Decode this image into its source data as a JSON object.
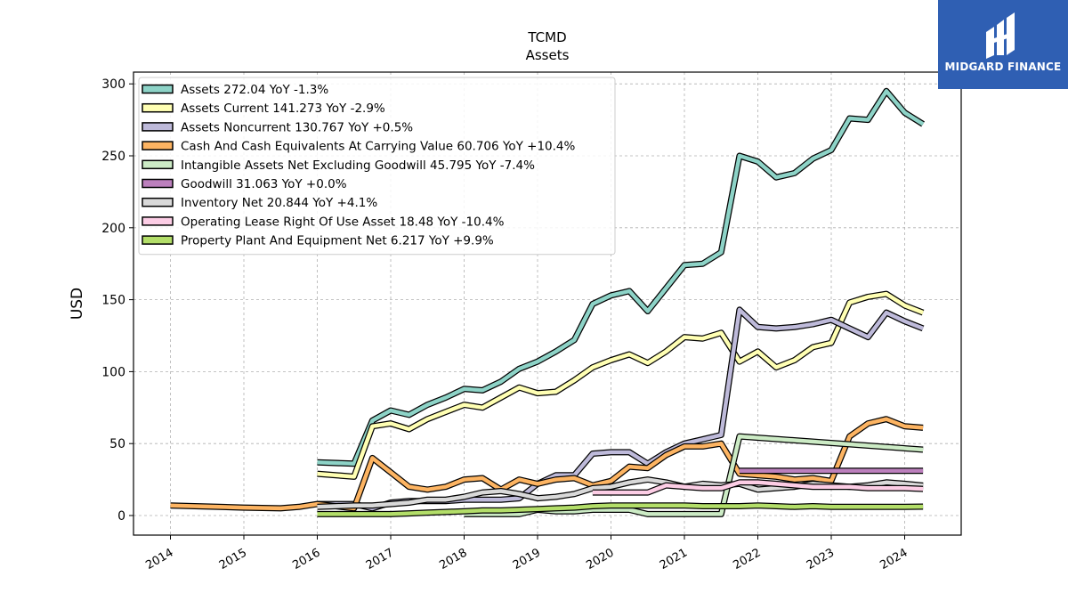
{
  "chart_data": {
    "type": "line",
    "title": "TCMD",
    "subtitle": "Assets",
    "ylabel": "USD",
    "xlabel": "",
    "xlim": [
      2013.5,
      2024.75
    ],
    "ylim": [
      -14,
      308
    ],
    "yticks": [
      0,
      50,
      100,
      150,
      200,
      250,
      300
    ],
    "xticks": [
      "2014",
      "2015",
      "2016",
      "2017",
      "2018",
      "2019",
      "2020",
      "2021",
      "2022",
      "2023",
      "2024"
    ],
    "grid": true,
    "legend_position": "top-left",
    "series": [
      {
        "name": "Assets  272.04 YoY -1.3%",
        "color": "#8dd3c7",
        "x": [
          2016.0,
          2016.5,
          2016.75,
          2017.0,
          2017.25,
          2017.5,
          2017.75,
          2018.0,
          2018.25,
          2018.5,
          2018.75,
          2019.0,
          2019.25,
          2019.5,
          2019.75,
          2020.0,
          2020.25,
          2020.5,
          2020.75,
          2021.0,
          2021.25,
          2021.5,
          2021.75,
          2022.0,
          2022.25,
          2022.5,
          2022.75,
          2023.0,
          2023.25,
          2023.5,
          2023.75,
          2024.0,
          2024.25
        ],
        "y": [
          37,
          36,
          66,
          73,
          70,
          77,
          82,
          88,
          87,
          93,
          102,
          107,
          114,
          122,
          147,
          153,
          156,
          142,
          158,
          174,
          175,
          183,
          250,
          246,
          235,
          238,
          248,
          254,
          276,
          275,
          295,
          280,
          272
        ]
      },
      {
        "name": "Assets Current  141.273 YoY -2.9%",
        "color": "#ffffb3",
        "x": [
          2016.0,
          2016.5,
          2016.75,
          2017.0,
          2017.25,
          2017.5,
          2017.75,
          2018.0,
          2018.25,
          2018.5,
          2018.75,
          2019.0,
          2019.25,
          2019.5,
          2019.75,
          2020.0,
          2020.25,
          2020.5,
          2020.75,
          2021.0,
          2021.25,
          2021.5,
          2021.75,
          2022.0,
          2022.25,
          2022.5,
          2022.75,
          2023.0,
          2023.25,
          2023.5,
          2023.75,
          2024.0,
          2024.25
        ],
        "y": [
          29,
          27,
          62,
          64,
          60,
          67,
          72,
          77,
          75,
          82,
          89,
          85,
          86,
          94,
          103,
          108,
          112,
          106,
          114,
          124,
          123,
          127,
          107,
          114,
          103,
          108,
          117,
          120,
          148,
          152,
          154,
          146,
          141
        ]
      },
      {
        "name": "Assets Noncurrent  130.767 YoY +0.5%",
        "color": "#bebada",
        "x": [
          2016.0,
          2016.5,
          2016.75,
          2017.0,
          2017.25,
          2017.5,
          2017.75,
          2018.0,
          2018.25,
          2018.5,
          2018.75,
          2019.0,
          2019.25,
          2019.5,
          2019.75,
          2020.0,
          2020.25,
          2020.5,
          2020.75,
          2021.0,
          2021.25,
          2021.5,
          2021.75,
          2022.0,
          2022.25,
          2022.5,
          2022.75,
          2023.0,
          2023.25,
          2023.5,
          2023.75,
          2024.0,
          2024.25
        ],
        "y": [
          8,
          8,
          5,
          9,
          10,
          10,
          10,
          11,
          11,
          11,
          12,
          22,
          28,
          28,
          43,
          44,
          44,
          36,
          44,
          50,
          53,
          56,
          143,
          131,
          130,
          131,
          133,
          136,
          130,
          124,
          141,
          135,
          130
        ]
      },
      {
        "name": "Cash And Cash Equivalents At Carrying Value  60.706 YoY +10.4%",
        "color": "#fb8072",
        "line_color": "#fdb462",
        "x": [
          2014.0,
          2015.0,
          2015.5,
          2015.75,
          2016.0,
          2016.5,
          2016.75,
          2017.0,
          2017.25,
          2017.5,
          2017.75,
          2018.0,
          2018.25,
          2018.5,
          2018.75,
          2019.0,
          2019.25,
          2019.5,
          2019.75,
          2020.0,
          2020.25,
          2020.5,
          2020.75,
          2021.0,
          2021.25,
          2021.5,
          2021.75,
          2022.0,
          2022.25,
          2022.5,
          2022.75,
          2023.0,
          2023.25,
          2023.5,
          2023.75,
          2024.0,
          2024.25
        ],
        "y": [
          7,
          5.5,
          5,
          6,
          8,
          5,
          40,
          30,
          20,
          18,
          20,
          25,
          26,
          18,
          25,
          22,
          25,
          26,
          21,
          24,
          34,
          33,
          42,
          48,
          48,
          50,
          29,
          28,
          27,
          25,
          26,
          24,
          55,
          64,
          67,
          62,
          61
        ]
      },
      {
        "name": "Intangible Assets Net Excluding Goodwill  45.795 YoY -7.4%",
        "color": "#ccebc5",
        "x": [
          2018.0,
          2018.25,
          2018.5,
          2018.75,
          2019.0,
          2019.25,
          2019.5,
          2019.75,
          2020.0,
          2020.25,
          2020.5,
          2020.75,
          2021.0,
          2021.25,
          2021.5,
          2021.75,
          2024.25
        ],
        "y": [
          1,
          1,
          1,
          1,
          4,
          3,
          3,
          4,
          4,
          4,
          1,
          1,
          1,
          1,
          1,
          55,
          45.8
        ]
      },
      {
        "name": "Goodwill  31.063 YoY +0.0%",
        "color": "#bc80bd",
        "x": [
          2021.75,
          2024.25
        ],
        "y": [
          31.063,
          31.063
        ]
      },
      {
        "name": "Inventory Net  20.844 YoY +4.1%",
        "color": "#d9d9d9",
        "x": [
          2016.0,
          2016.5,
          2016.75,
          2017.0,
          2017.25,
          2017.5,
          2017.75,
          2018.0,
          2018.25,
          2018.5,
          2018.75,
          2019.0,
          2019.25,
          2019.5,
          2019.75,
          2020.0,
          2020.25,
          2020.5,
          2020.75,
          2021.0,
          2021.25,
          2021.5,
          2021.75,
          2022.0,
          2022.25,
          2022.5,
          2022.75,
          2023.0,
          2023.25,
          2023.5,
          2023.75,
          2024.0,
          2024.25
        ],
        "y": [
          6,
          7,
          7,
          8,
          9,
          11,
          11,
          13,
          16,
          17,
          15,
          12,
          13,
          15,
          19,
          20,
          23,
          25,
          23,
          20,
          22,
          21,
          22,
          18,
          19,
          20,
          22,
          21,
          20,
          21,
          23,
          22,
          20.8
        ]
      },
      {
        "name": "Operating Lease Right Of Use Asset  18.48 YoY -10.4%",
        "color": "#fccde5",
        "x": [
          2019.75,
          2020.0,
          2020.25,
          2020.5,
          2020.75,
          2021.0,
          2021.25,
          2021.5,
          2021.75,
          2022.0,
          2022.25,
          2022.5,
          2022.75,
          2023.0,
          2023.25,
          2023.5,
          2023.75,
          2024.0,
          2024.25
        ],
        "y": [
          16,
          16,
          16,
          16,
          21,
          20,
          19,
          19,
          23,
          23,
          22,
          21,
          20,
          20,
          20,
          19,
          19,
          19,
          18.5
        ]
      },
      {
        "name": "Property Plant And Equipment Net  6.217 YoY +9.9%",
        "color": "#b3de69",
        "x": [
          2016.0,
          2016.5,
          2016.75,
          2017.0,
          2017.25,
          2017.5,
          2017.75,
          2018.0,
          2018.25,
          2018.5,
          2018.75,
          2019.0,
          2019.25,
          2019.5,
          2019.75,
          2020.0,
          2020.25,
          2020.5,
          2020.75,
          2021.0,
          2021.25,
          2021.5,
          2021.75,
          2022.0,
          2022.25,
          2022.5,
          2022.75,
          2023.0,
          2023.25,
          2023.5,
          2023.75,
          2024.0,
          2024.25
        ],
        "y": [
          1,
          1,
          1,
          1,
          1.5,
          2,
          2.5,
          3,
          3.5,
          3.5,
          4,
          4.5,
          5,
          5.5,
          6.5,
          7,
          7,
          7,
          7,
          7,
          6.5,
          6.5,
          6.5,
          7,
          6.5,
          6,
          6.5,
          6,
          6,
          6,
          6,
          6,
          6.2
        ]
      }
    ]
  },
  "logo": {
    "text": "MIDGARD FINANCE"
  }
}
